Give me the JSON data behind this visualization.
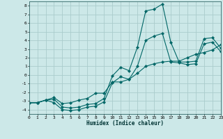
{
  "xlabel": "Humidex (Indice chaleur)",
  "bg_color": "#cce8e8",
  "grid_color": "#aacccc",
  "line_color": "#006666",
  "xlim": [
    0,
    23
  ],
  "ylim": [
    -4.5,
    8.5
  ],
  "xticks": [
    0,
    1,
    2,
    3,
    4,
    5,
    6,
    7,
    8,
    9,
    10,
    11,
    12,
    13,
    14,
    15,
    16,
    17,
    18,
    19,
    20,
    21,
    22,
    23
  ],
  "yticks": [
    -4,
    -3,
    -2,
    -1,
    0,
    1,
    2,
    3,
    4,
    5,
    6,
    7,
    8
  ],
  "line1_x": [
    0,
    1,
    2,
    3,
    4,
    5,
    6,
    7,
    8,
    9,
    10,
    11,
    12,
    13,
    14,
    15,
    16,
    17,
    18,
    19,
    20,
    21,
    22,
    23
  ],
  "line1_y": [
    -3.2,
    -3.2,
    -2.9,
    -2.8,
    -3.7,
    -3.8,
    -3.7,
    -3.4,
    -3.3,
    -2.7,
    -0.1,
    0.9,
    0.5,
    3.2,
    7.4,
    7.6,
    8.2,
    3.8,
    1.5,
    1.5,
    1.6,
    4.2,
    4.3,
    3.1
  ],
  "line2_x": [
    0,
    1,
    2,
    3,
    4,
    5,
    6,
    7,
    8,
    9,
    10,
    11,
    12,
    13,
    14,
    15,
    16,
    17,
    18,
    19,
    20,
    21,
    22,
    23
  ],
  "line2_y": [
    -3.2,
    -3.2,
    -2.9,
    -2.6,
    -3.3,
    -3.2,
    -2.9,
    -2.7,
    -2.1,
    -2.1,
    -0.8,
    -0.8,
    -0.5,
    0.2,
    1.0,
    1.3,
    1.5,
    1.6,
    1.6,
    2.0,
    2.4,
    2.6,
    2.9,
    3.5
  ],
  "line3_x": [
    0,
    1,
    2,
    3,
    4,
    5,
    6,
    7,
    8,
    9,
    10,
    11,
    12,
    13,
    14,
    15,
    16,
    17,
    18,
    19,
    20,
    21,
    22,
    23
  ],
  "line3_y": [
    -3.2,
    -3.2,
    -2.9,
    -3.2,
    -4.0,
    -4.1,
    -4.0,
    -3.7,
    -3.6,
    -3.1,
    -0.9,
    -0.2,
    -0.5,
    1.0,
    4.0,
    4.5,
    4.8,
    1.5,
    1.4,
    1.2,
    1.3,
    3.6,
    3.8,
    2.7
  ]
}
